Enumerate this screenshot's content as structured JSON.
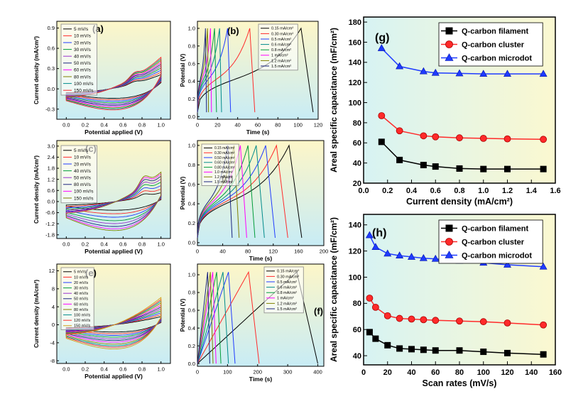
{
  "colors": {
    "black": "#000000",
    "red": "#ff2a2a",
    "blue": "#1f3bff",
    "green": "#009c3a",
    "olive": "#7f7f00",
    "purple": "#9933cc",
    "magenta": "#ff00ff",
    "navy": "#1a237e",
    "teal": "#008b8b",
    "orange": "#d4a017",
    "bg_left_start": "#fdf6c8",
    "bg_left_end": "#c8ecf5",
    "bg_right_start": "#d7f3f3",
    "bg_right_end": "#fbf8d0"
  },
  "chart_data": [
    {
      "id": "a",
      "type": "line",
      "label": "(a)",
      "xlabel": "Potential applied (V)",
      "ylabel": "Current density (mA/cm²)",
      "xlim": [
        -0.1,
        1.1
      ],
      "ylim": [
        -0.45,
        1.0
      ],
      "xticks": [
        "0.0",
        "0.2",
        "0.4",
        "0.6",
        "0.8",
        "1.0"
      ],
      "yticks": [
        "-0.3",
        "0.0",
        "0.3",
        "0.6",
        "0.9"
      ],
      "legend": [
        "5 mV/s",
        "10 mV/s",
        "20 mV/s",
        "30 mV/s",
        "40 mV/s",
        "50 mV/s",
        "60 mV/s",
        "80 mV/s",
        "100 mV/s",
        "150 mV/s"
      ],
      "scales": [
        0.45,
        0.52,
        0.59,
        0.66,
        0.72,
        0.78,
        0.84,
        0.9,
        0.95,
        1.0
      ],
      "peak_upper": 0.85,
      "peak_lower": -0.32,
      "bump_x": 0.72,
      "bump_h": 0.12
    },
    {
      "id": "b",
      "type": "line",
      "label": "(b)",
      "xlabel": "Time (s)",
      "ylabel": "Potential (V)",
      "xlim": [
        0,
        120
      ],
      "ylim": [
        -0.03,
        1.08
      ],
      "xticks": [
        "0",
        "20",
        "40",
        "60",
        "80",
        "100",
        "120"
      ],
      "yticks": [
        "0.0",
        "0.2",
        "0.4",
        "0.6",
        "0.8",
        "1.0"
      ],
      "legend": [
        "0.15 mA/cm²",
        "0.30 mA/cm²",
        "0.5 mA/cm²",
        "0.6 mA/cm²",
        "0.8 mA/cm²",
        "1 mA/cm²",
        "1.2 mA/cm²",
        "1.5 mA/cm²"
      ],
      "peaks": [
        103,
        52,
        30,
        22,
        17,
        13,
        10,
        8
      ],
      "ends": [
        115,
        57,
        33,
        24,
        19,
        14,
        11,
        9
      ],
      "v0": 0.05
    },
    {
      "id": "c",
      "type": "line",
      "label": "(c)",
      "xlabel": "Potential applied (V)",
      "ylabel": "Current density (mA/cm²)",
      "xlim": [
        -0.1,
        1.1
      ],
      "ylim": [
        -2.0,
        3.3
      ],
      "xticks": [
        "0.0",
        "0.2",
        "0.4",
        "0.6",
        "0.8",
        "1.0"
      ],
      "yticks": [
        "-1.8",
        "-1.2",
        "-0.6",
        "0.0",
        "0.6",
        "1.2",
        "1.8",
        "2.4",
        "3.0"
      ],
      "legend": [
        "5 mV/s",
        "10 mV/s",
        "20 mV/s",
        "40 mV/s",
        "50 mV/s",
        "80 mV/s",
        "100 mV/s",
        "150 mV/s"
      ],
      "scales": [
        0.3,
        0.42,
        0.54,
        0.66,
        0.76,
        0.86,
        0.94,
        1.0
      ],
      "peak_upper": 2.9,
      "peak_lower": -1.6,
      "bump_x": 0.82,
      "bump_h": 0.9
    },
    {
      "id": "d",
      "type": "line",
      "label": "(d)",
      "xlabel": "Time (s)",
      "ylabel": "Potential (V)",
      "xlim": [
        0,
        200
      ],
      "ylim": [
        -0.03,
        1.05
      ],
      "xticks": [
        "0",
        "40",
        "80",
        "120",
        "160",
        "200"
      ],
      "yticks": [
        "0.0",
        "0.2",
        "0.4",
        "0.6",
        "0.8",
        "1.0"
      ],
      "legend": [
        "0.15 mA/cm²",
        "0.30 mA/cm²",
        "0.50 mA/cm²",
        "0.60 mA/cm²",
        "0.80 mA/cm²",
        "1.0 mA/cm²",
        "1.2 mA/cm²",
        "1.5 mA/cm²"
      ],
      "peaks": [
        145,
        125,
        108,
        93,
        80,
        68,
        58,
        48
      ],
      "ends": [
        165,
        143,
        123,
        106,
        91,
        78,
        66,
        55
      ],
      "v0": 0.05
    },
    {
      "id": "e",
      "type": "line",
      "label": "(e)",
      "xlabel": "Potential applied (V)",
      "ylabel": "Current density (mA/cm²)",
      "xlim": [
        -0.1,
        1.1
      ],
      "ylim": [
        -8.6,
        13.5
      ],
      "xticks": [
        "0.0",
        "0.2",
        "0.4",
        "0.6",
        "0.8",
        "1.0"
      ],
      "yticks": [
        "-8",
        "-4",
        "0",
        "4",
        "8",
        "12"
      ],
      "legend": [
        "5 mV/s",
        "10 mV/s",
        "20 mV/s",
        "30 mV/s",
        "40 mV/s",
        "50 mV/s",
        "60 mV/s",
        "80 mV/s",
        "100 mV/s",
        "120 mV/s",
        "150 mV/s"
      ],
      "scales": [
        0.3,
        0.37,
        0.44,
        0.51,
        0.58,
        0.65,
        0.72,
        0.8,
        0.87,
        0.93,
        1.0
      ],
      "peak_upper": 11.0,
      "peak_lower": -5.5,
      "bump_x": 0.9,
      "bump_h": 0.0
    },
    {
      "id": "f",
      "type": "line",
      "label": "(f)",
      "xlabel": "Time (s)",
      "ylabel": "Potential (V)",
      "xlim": [
        0,
        420
      ],
      "ylim": [
        -0.03,
        1.12
      ],
      "xticks": [
        "0",
        "100",
        "200",
        "300",
        "400"
      ],
      "yticks": [
        "0.0",
        "0.2",
        "0.4",
        "0.6",
        "0.8",
        "1.0"
      ],
      "legend": [
        "0.15 mA/cm²",
        "0.30 mA/cm²",
        "0.5 mA/cm²",
        "0.6 mA/cm²",
        "0.8 mA/cm²",
        "1 mA/cm²",
        "1.2 mA/cm²",
        "1.5 mA/cm²"
      ],
      "peaks": [
        330,
        170,
        103,
        85,
        64,
        51,
        43,
        34
      ],
      "ends": [
        400,
        205,
        125,
        103,
        78,
        62,
        52,
        41
      ],
      "v0": 0.0,
      "vmax": 1.03
    },
    {
      "id": "g",
      "type": "scatter",
      "label": "(g)",
      "xlabel": "Current density (mA/cm²)",
      "ylabel": "Areal specific capacitance (mF/cm²)",
      "xlim": [
        0.0,
        1.6
      ],
      "ylim": [
        20,
        185
      ],
      "xticks": [
        "0.0",
        "0.2",
        "0.4",
        "0.6",
        "0.8",
        "1.0",
        "1.2",
        "1.4",
        "1.6"
      ],
      "yticks": [
        "20",
        "40",
        "60",
        "80",
        "100",
        "120",
        "140",
        "160",
        "180"
      ],
      "x": [
        0.15,
        0.3,
        0.5,
        0.6,
        0.8,
        1.0,
        1.2,
        1.5
      ],
      "series": [
        {
          "name": "Q-carbon filament",
          "marker": "square",
          "values": [
            61,
            43,
            38,
            36.5,
            34.5,
            34,
            34,
            34
          ]
        },
        {
          "name": "Q-carbon cluster",
          "marker": "circle",
          "values": [
            87,
            72,
            67,
            66,
            65,
            64.5,
            64,
            63.5
          ]
        },
        {
          "name": "Q-carbon microdot",
          "marker": "triangle",
          "values": [
            154,
            136,
            131,
            129.5,
            129,
            128.5,
            128.5,
            128.5
          ]
        }
      ]
    },
    {
      "id": "h",
      "type": "scatter",
      "label": "(h)",
      "xlabel": "Scan rates (mV/s)",
      "ylabel": "Areal specific capacitance (mF/cm²)",
      "xlim": [
        0,
        160
      ],
      "ylim": [
        33,
        148
      ],
      "xticks": [
        "0",
        "20",
        "40",
        "60",
        "80",
        "100",
        "120",
        "140",
        "160"
      ],
      "yticks": [
        "40",
        "60",
        "80",
        "100",
        "120",
        "140"
      ],
      "x": [
        5,
        10,
        20,
        30,
        40,
        50,
        60,
        80,
        100,
        120,
        150
      ],
      "series": [
        {
          "name": "Q-carbon filament",
          "marker": "square",
          "values": [
            58,
            53,
            48,
            45.5,
            45,
            44.5,
            44,
            44,
            43,
            42,
            41
          ]
        },
        {
          "name": "Q-carbon cluster",
          "marker": "circle",
          "values": [
            84,
            77,
            70.5,
            68.5,
            68,
            67.5,
            67,
            66.5,
            66,
            65,
            63.5
          ]
        },
        {
          "name": "Q-carbon microdot",
          "marker": "triangle",
          "values": [
            132,
            123,
            118,
            116.5,
            115.5,
            114.5,
            114,
            112.5,
            111,
            109.5,
            108
          ]
        }
      ]
    }
  ]
}
